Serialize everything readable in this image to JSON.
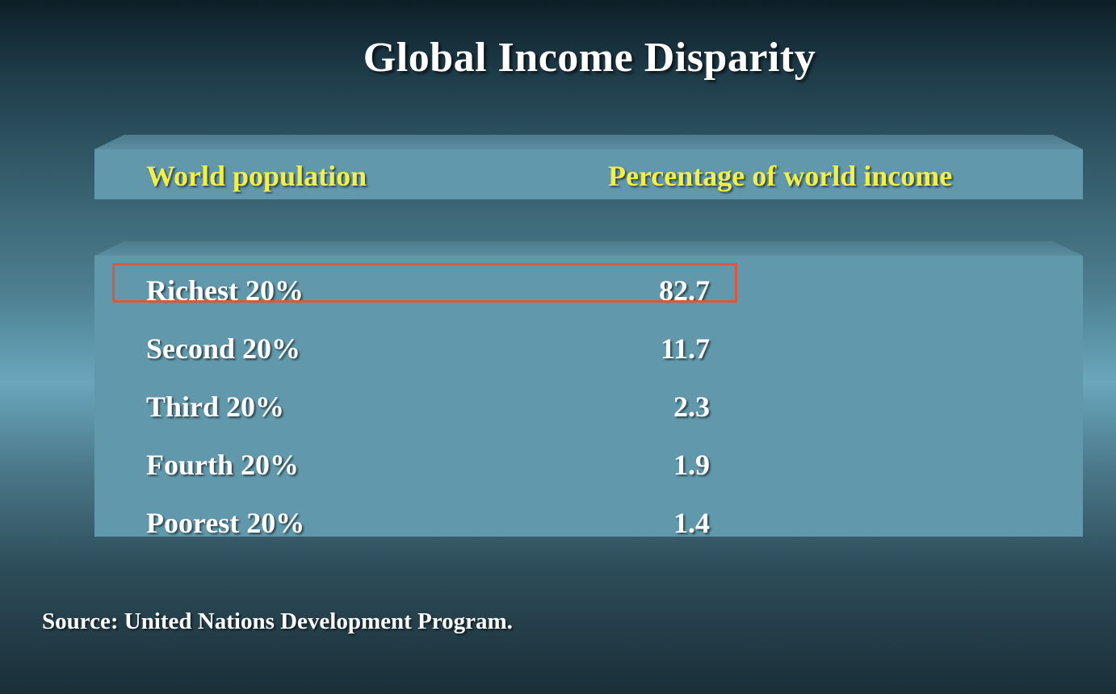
{
  "title": "Global Income Disparity",
  "table": {
    "headers": {
      "population": "World population",
      "income": "Percentage of world income"
    },
    "rows": [
      {
        "label": "Richest 20%",
        "value": "82.7",
        "highlighted": true
      },
      {
        "label": "Second 20%",
        "value": "11.7",
        "highlighted": false
      },
      {
        "label": "Third 20%",
        "value": "2.3",
        "highlighted": false
      },
      {
        "label": "Fourth 20%",
        "value": "1.9",
        "highlighted": false
      },
      {
        "label": "Poorest 20%",
        "value": "1.4",
        "highlighted": false
      }
    ]
  },
  "source": "Source: United Nations Development Program.",
  "colors": {
    "header_text": "#f3ef4a",
    "body_text": "#ffffff",
    "panel": "#6198ab",
    "highlight_border": "#d9583e"
  }
}
